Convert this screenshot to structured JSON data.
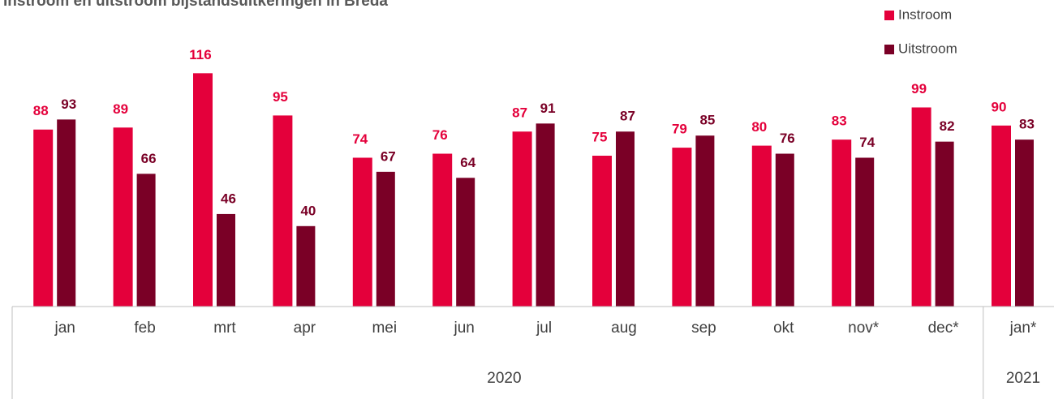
{
  "chart_data": {
    "type": "bar",
    "title": "Instroom en uitstroom bijstandsuitkeringen in Breda",
    "categories": [
      "jan",
      "feb",
      "mrt",
      "apr",
      "mei",
      "jun",
      "jul",
      "aug",
      "sep",
      "okt",
      "nov*",
      "dec*",
      "jan*"
    ],
    "groups": [
      {
        "label": "2020",
        "first": 0,
        "last": 11
      },
      {
        "label": "2021",
        "first": 12,
        "last": 12
      }
    ],
    "series": [
      {
        "name": "Instroom",
        "color": "#e4003b",
        "values": [
          88,
          89,
          116,
          95,
          74,
          76,
          87,
          75,
          79,
          80,
          83,
          99,
          90
        ]
      },
      {
        "name": "Uitstroom",
        "color": "#7a0026",
        "values": [
          93,
          66,
          46,
          40,
          67,
          64,
          91,
          87,
          85,
          76,
          74,
          82,
          83
        ]
      }
    ],
    "ylim": [
      0,
      150
    ],
    "legend": "top-right",
    "data_labels": true
  }
}
